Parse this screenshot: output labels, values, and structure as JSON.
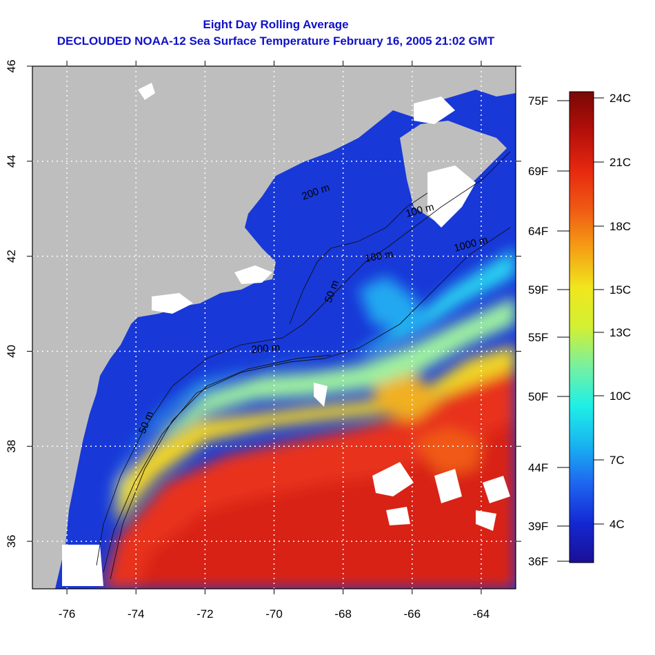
{
  "title": "Eight Day Rolling Average",
  "subtitle": "DECLOUDED NOAA-12 Sea Surface Temperature February 16, 2005 21:02 GMT",
  "map": {
    "lon_ticks": [
      "-76",
      "-74",
      "-72",
      "-70",
      "-68",
      "-66",
      "-64"
    ],
    "lon_values": [
      -76,
      -74,
      -72,
      -70,
      -68,
      -66,
      -64
    ],
    "lat_ticks": [
      "36",
      "38",
      "40",
      "42",
      "44",
      "46"
    ],
    "lat_values": [
      36,
      38,
      40,
      42,
      44,
      46
    ],
    "lon_range": [
      -77,
      -63
    ],
    "lat_range": [
      35,
      46
    ],
    "grid": true,
    "contour_labels": [
      "50 m",
      "50 m",
      "100 m",
      "100 m",
      "200 m",
      "200 m",
      "1000 m"
    ],
    "colors": {
      "land": "#bebebe",
      "cloud": "#ffffff",
      "cold": "#0a1ec8",
      "cool": "#18d2f0",
      "mid": "#c8f02a",
      "warm": "#f0281a",
      "hot": "#c81010"
    }
  },
  "colorbar": {
    "fahrenheit": [
      "75F",
      "69F",
      "64F",
      "59F",
      "55F",
      "50F",
      "44F",
      "39F",
      "36F"
    ],
    "celsius": [
      "24C",
      "21C",
      "18C",
      "15C",
      "13C",
      "10C",
      "7C",
      "4C"
    ],
    "stops": [
      "#1a0f96",
      "#1428d2",
      "#1e64f0",
      "#18b4f0",
      "#1ef0e6",
      "#78f0a0",
      "#d2f032",
      "#f0e61e",
      "#f5a014",
      "#f05a14",
      "#e6280f",
      "#b40f0a",
      "#780805"
    ]
  }
}
